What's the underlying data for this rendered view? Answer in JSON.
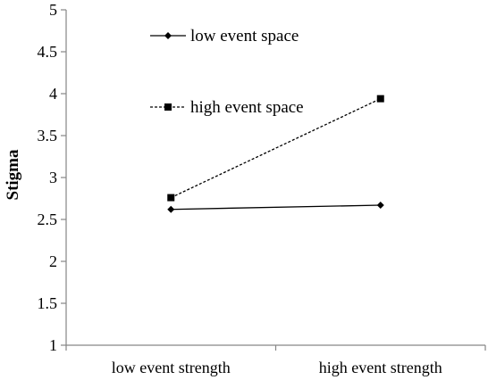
{
  "chart_data": {
    "type": "line",
    "title": "",
    "xlabel": "",
    "ylabel": "Stigma",
    "ylim": [
      1,
      5
    ],
    "yticks": [
      "1",
      "1.5",
      "2",
      "2.5",
      "3",
      "3.5",
      "4",
      "4.5",
      "5"
    ],
    "categories": [
      "low event strength",
      "high event strength"
    ],
    "grid": false,
    "legend_position": "top-left",
    "series": [
      {
        "name": "low event space",
        "values": [
          2.62,
          2.67
        ],
        "line_style": "solid",
        "marker": "diamond",
        "color": "#000000"
      },
      {
        "name": "high event space",
        "values": [
          2.76,
          3.94
        ],
        "line_style": "dashed",
        "marker": "square",
        "color": "#000000"
      }
    ]
  }
}
